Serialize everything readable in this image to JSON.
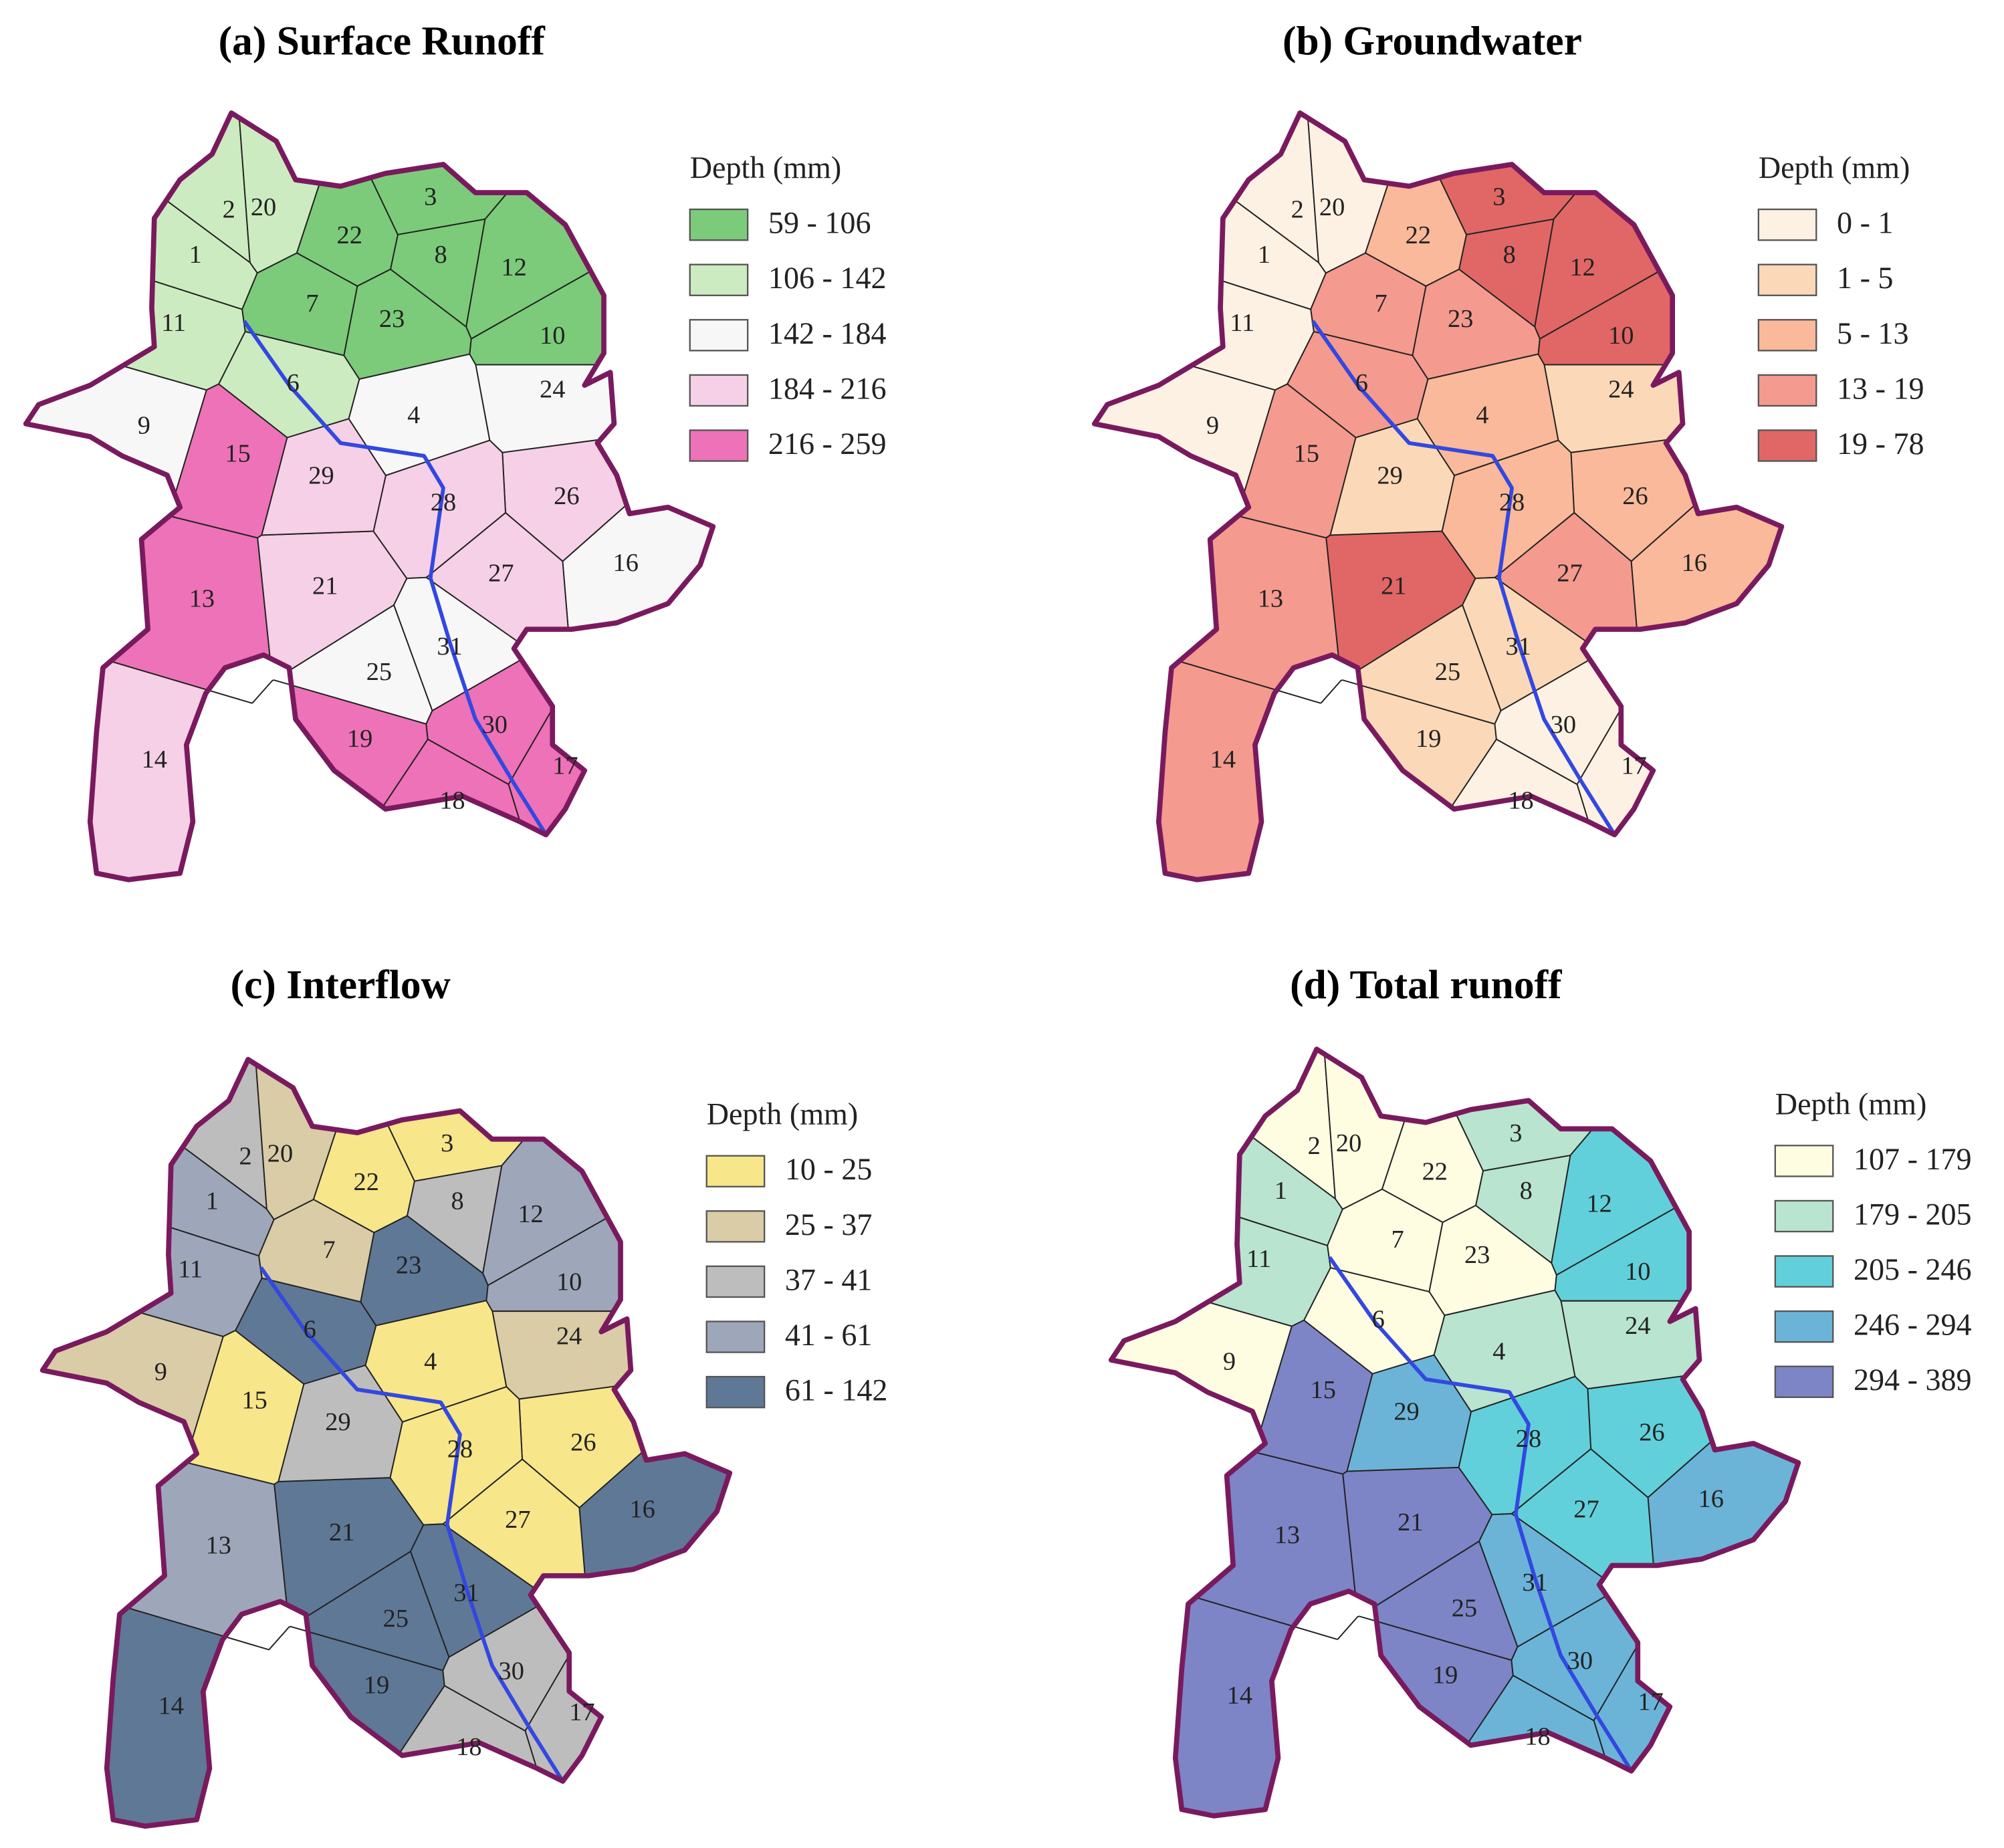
{
  "maps": [
    {
      "title": "(a) Surface Runoff",
      "legend_title": "Depth (mm)",
      "legend_labels": [
        "59 - 106",
        "106 - 142",
        "142 - 184",
        "184 - 216",
        "216 - 259"
      ],
      "colors": [
        "#7ccb7a",
        "#cdebc0",
        "#f7f7f7",
        "#f6d0e6",
        "#ee72b8"
      ],
      "subbasins": [
        "1",
        "2",
        "3",
        "4",
        "6",
        "7",
        "8",
        "9",
        "10",
        "11",
        "12",
        "13",
        "14",
        "15",
        "16",
        "17",
        "18",
        "19",
        "20",
        "21",
        "22",
        "23",
        "24",
        "25",
        "26",
        "27",
        "28",
        "29",
        "30",
        "31"
      ],
      "classes": [
        1,
        1,
        0,
        2,
        1,
        0,
        0,
        2,
        0,
        1,
        0,
        4,
        3,
        4,
        2,
        4,
        4,
        4,
        1,
        3,
        0,
        0,
        2,
        2,
        3,
        3,
        3,
        3,
        4,
        2
      ]
    },
    {
      "title": "(b) Groundwater",
      "legend_title": "Depth (mm)",
      "legend_labels": [
        "0 - 1",
        "1 - 5",
        "5 - 13",
        "13 - 19",
        "19 - 78"
      ],
      "colors": [
        "#fdf1e3",
        "#fbd9b8",
        "#f9b99a",
        "#f49a8f",
        "#e06766"
      ],
      "subbasins": [
        "1",
        "2",
        "3",
        "4",
        "6",
        "7",
        "8",
        "9",
        "10",
        "11",
        "12",
        "13",
        "14",
        "15",
        "16",
        "17",
        "18",
        "19",
        "20",
        "21",
        "22",
        "23",
        "24",
        "25",
        "26",
        "27",
        "28",
        "29",
        "30",
        "31"
      ],
      "classes": [
        0,
        0,
        4,
        2,
        3,
        3,
        4,
        0,
        4,
        0,
        4,
        3,
        3,
        3,
        2,
        0,
        0,
        1,
        0,
        4,
        2,
        3,
        1,
        1,
        2,
        3,
        2,
        1,
        0,
        1
      ]
    },
    {
      "title": "(c) Interflow",
      "legend_title": "Depth (mm)",
      "legend_labels": [
        "10 - 25",
        "25 - 37",
        "37 - 41",
        "41 - 61",
        "61 - 142"
      ],
      "colors": [
        "#f7e68a",
        "#d9cca6",
        "#bdbdbd",
        "#9ea6ba",
        "#5f7896"
      ],
      "subbasins": [
        "1",
        "2",
        "3",
        "4",
        "6",
        "7",
        "8",
        "9",
        "10",
        "11",
        "12",
        "13",
        "14",
        "15",
        "16",
        "17",
        "18",
        "19",
        "20",
        "21",
        "22",
        "23",
        "24",
        "25",
        "26",
        "27",
        "28",
        "29",
        "30",
        "31"
      ],
      "classes": [
        3,
        2,
        0,
        0,
        4,
        1,
        2,
        1,
        3,
        3,
        3,
        3,
        4,
        0,
        4,
        2,
        2,
        4,
        1,
        4,
        0,
        4,
        1,
        4,
        0,
        0,
        0,
        2,
        2,
        4
      ]
    },
    {
      "title": "(d) Total runoff",
      "legend_title": "Depth (mm)",
      "legend_labels": [
        "107 - 179",
        "179 - 205",
        "205 - 246",
        "246 - 294",
        "294 - 389"
      ],
      "colors": [
        "#fefde2",
        "#b9e4cf",
        "#62d0da",
        "#6bb4d8",
        "#7d85c6"
      ],
      "subbasins": [
        "1",
        "2",
        "3",
        "4",
        "6",
        "7",
        "8",
        "9",
        "10",
        "11",
        "12",
        "13",
        "14",
        "15",
        "16",
        "17",
        "18",
        "19",
        "20",
        "21",
        "22",
        "23",
        "24",
        "25",
        "26",
        "27",
        "28",
        "29",
        "30",
        "31"
      ],
      "classes": [
        1,
        0,
        1,
        1,
        0,
        0,
        1,
        0,
        2,
        1,
        2,
        4,
        4,
        4,
        3,
        3,
        3,
        4,
        0,
        4,
        0,
        0,
        1,
        4,
        2,
        2,
        2,
        3,
        3,
        3
      ]
    }
  ]
}
